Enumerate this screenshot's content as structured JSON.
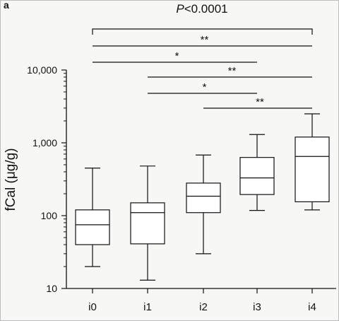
{
  "panel_label": "a",
  "chart_data": {
    "type": "box",
    "title": "",
    "xlabel": "",
    "ylabel": "fCal (μg/g)",
    "yscale": "log",
    "ylim": [
      10,
      10000
    ],
    "yticks": [
      10,
      100,
      1000,
      10000
    ],
    "ytick_labels": [
      "10",
      "100",
      "1,000",
      "10,000"
    ],
    "categories": [
      "i0",
      "i1",
      "i2",
      "i3",
      "i4"
    ],
    "boxes": [
      {
        "category": "i0",
        "min": 20,
        "q1": 40,
        "median": 75,
        "q3": 120,
        "max": 450
      },
      {
        "category": "i1",
        "min": 13,
        "q1": 41,
        "median": 110,
        "q3": 150,
        "max": 480
      },
      {
        "category": "i2",
        "min": 30,
        "q1": 110,
        "median": 185,
        "q3": 280,
        "max": 680
      },
      {
        "category": "i3",
        "min": 118,
        "q1": 195,
        "median": 330,
        "q3": 630,
        "max": 1300
      },
      {
        "category": "i4",
        "min": 120,
        "q1": 155,
        "median": 650,
        "q3": 1200,
        "max": 2500
      }
    ],
    "comparisons": [
      {
        "from": "i0",
        "to": "i4",
        "label": "P<0.0001",
        "style": "bracket"
      },
      {
        "from": "i0",
        "to": "i4",
        "label": "**"
      },
      {
        "from": "i0",
        "to": "i3",
        "label": "*"
      },
      {
        "from": "i1",
        "to": "i4",
        "label": "**"
      },
      {
        "from": "i1",
        "to": "i3",
        "label": "*"
      },
      {
        "from": "i2",
        "to": "i4",
        "label": "**"
      }
    ],
    "colors": {
      "line": "#111111",
      "box_fill": "#ffffff",
      "background": "#f7f7f5"
    }
  }
}
